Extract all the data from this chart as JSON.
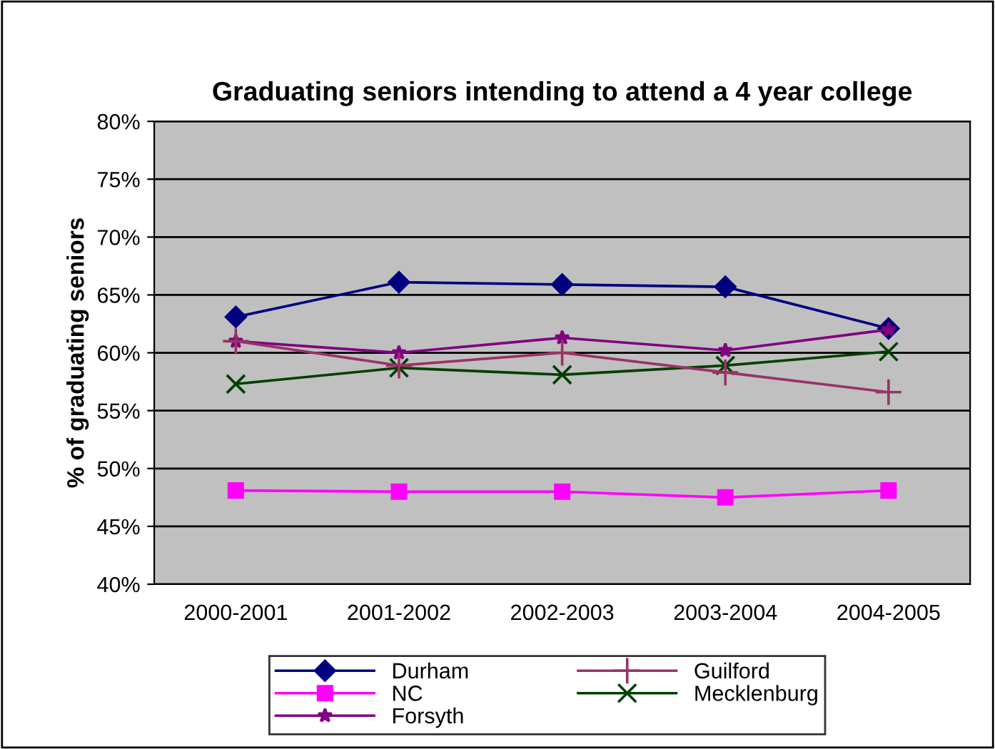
{
  "chart_data": {
    "type": "line",
    "title": "Graduating seniors intending to attend a 4 year college",
    "ylabel": "% of graduating seniors",
    "categories": [
      "2000-2001",
      "2001-2002",
      "2002-2003",
      "2003-2004",
      "2004-2005"
    ],
    "series": [
      {
        "name": "Durham",
        "color": "#000080",
        "marker": "diamond",
        "values": [
          63.1,
          66.1,
          65.9,
          65.7,
          62.1
        ]
      },
      {
        "name": "NC",
        "color": "#ff00ff",
        "marker": "square",
        "values": [
          48.1,
          48.0,
          48.0,
          47.5,
          48.1
        ]
      },
      {
        "name": "Forsyth",
        "color": "#800080",
        "marker": "star",
        "values": [
          61.0,
          60.0,
          61.3,
          60.2,
          62.0
        ]
      },
      {
        "name": "Guilford",
        "color": "#993366",
        "marker": "plus",
        "values": [
          61.0,
          58.9,
          60.0,
          58.3,
          56.6
        ]
      },
      {
        "name": "Mecklenburg",
        "color": "#004000",
        "marker": "cross",
        "values": [
          57.3,
          58.7,
          58.1,
          58.9,
          60.1
        ]
      }
    ],
    "ylim": [
      40,
      80
    ],
    "yticks": [
      {
        "value": 40,
        "label": "40%"
      },
      {
        "value": 45,
        "label": "45%"
      },
      {
        "value": 50,
        "label": "50%"
      },
      {
        "value": 55,
        "label": "55%"
      },
      {
        "value": 60,
        "label": "60%"
      },
      {
        "value": 65,
        "label": "65%"
      },
      {
        "value": 70,
        "label": "70%"
      },
      {
        "value": 75,
        "label": "75%"
      },
      {
        "value": 80,
        "label": "80%"
      }
    ],
    "grid": "y",
    "legend": "bottom",
    "line_style": "solid"
  }
}
